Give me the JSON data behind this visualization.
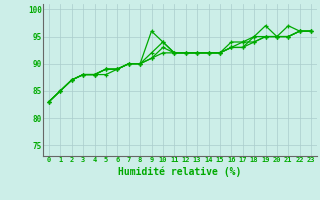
{
  "xlabel": "Humidité relative (%)",
  "xlim": [
    -0.5,
    23.5
  ],
  "ylim": [
    73,
    101
  ],
  "yticks": [
    75,
    80,
    85,
    90,
    95,
    100
  ],
  "xticks": [
    0,
    1,
    2,
    3,
    4,
    5,
    6,
    7,
    8,
    9,
    10,
    11,
    12,
    13,
    14,
    15,
    16,
    17,
    18,
    19,
    20,
    21,
    22,
    23
  ],
  "bg_color": "#cceee8",
  "line_color": "#00aa00",
  "grid_color": "#aacccc",
  "series": [
    [
      83,
      85,
      87,
      88,
      88,
      88,
      89,
      90,
      90,
      96,
      94,
      92,
      92,
      92,
      92,
      92,
      93,
      93,
      95,
      97,
      95,
      97,
      96,
      96
    ],
    [
      83,
      85,
      87,
      88,
      88,
      89,
      89,
      90,
      90,
      92,
      94,
      92,
      92,
      92,
      92,
      92,
      94,
      94,
      95,
      95,
      95,
      95,
      96,
      96
    ],
    [
      83,
      85,
      87,
      88,
      88,
      89,
      89,
      90,
      90,
      91,
      93,
      92,
      92,
      92,
      92,
      92,
      93,
      94,
      94,
      95,
      95,
      95,
      96,
      96
    ],
    [
      83,
      85,
      87,
      88,
      88,
      89,
      89,
      90,
      90,
      91,
      92,
      92,
      92,
      92,
      92,
      92,
      93,
      93,
      94,
      95,
      95,
      95,
      96,
      96
    ]
  ]
}
